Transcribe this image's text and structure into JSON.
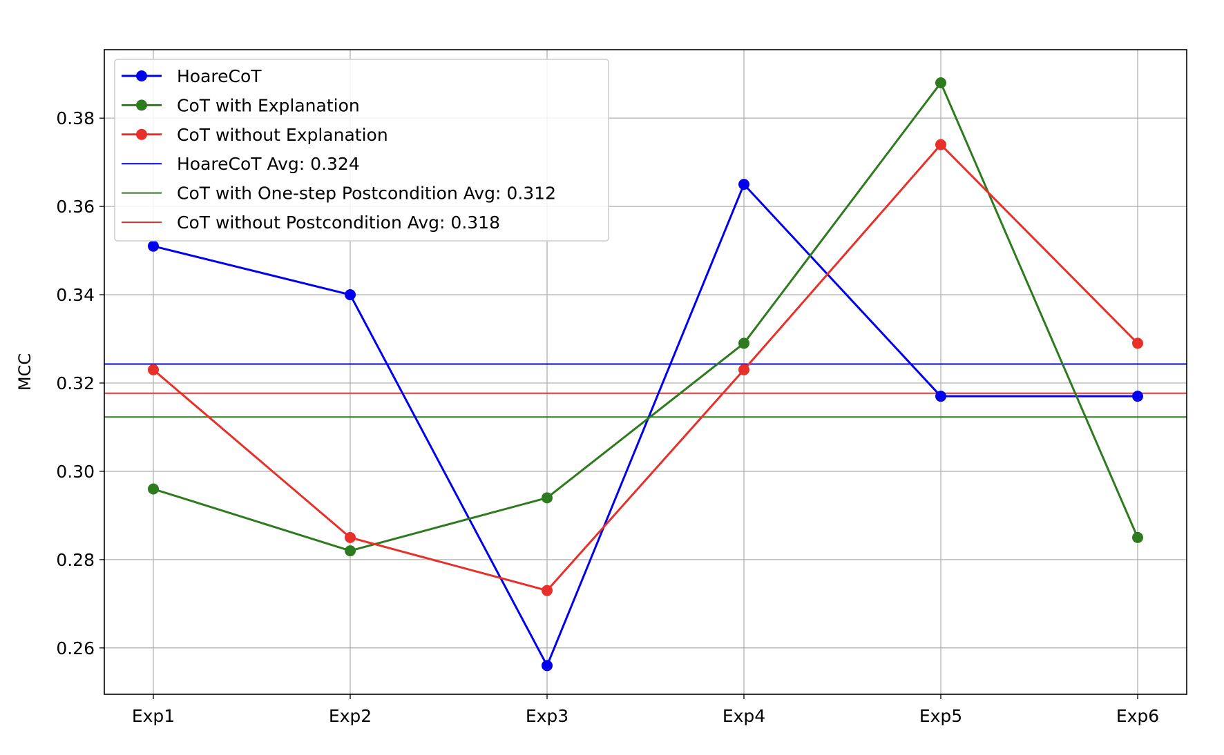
{
  "chart_data": {
    "type": "line",
    "title": "",
    "xlabel": "",
    "ylabel": "MCC",
    "categories": [
      "Exp1",
      "Exp2",
      "Exp3",
      "Exp4",
      "Exp5",
      "Exp6"
    ],
    "ylim": [
      0.2495,
      0.3955
    ],
    "yticks": [
      0.26,
      0.28,
      0.3,
      0.32,
      0.34,
      0.36,
      0.38
    ],
    "ytick_labels": [
      "0.26",
      "0.28",
      "0.30",
      "0.32",
      "0.34",
      "0.36",
      "0.38"
    ],
    "grid": true,
    "legend_position": "top-left",
    "series": [
      {
        "name": "HoareCoT",
        "color": "#0000ee",
        "values": [
          0.351,
          0.34,
          0.256,
          0.365,
          0.317,
          0.317
        ]
      },
      {
        "name": "CoT with Explanation",
        "color": "#2e7a1e",
        "values": [
          0.296,
          0.282,
          0.294,
          0.329,
          0.388,
          0.285
        ]
      },
      {
        "name": "CoT without Explanation",
        "color": "#e8302a",
        "values": [
          0.323,
          0.285,
          0.273,
          0.323,
          0.374,
          0.329
        ]
      }
    ],
    "hlines": [
      {
        "name": "HoareCoT Avg: 0.324",
        "color": "#0000ee",
        "value": 0.3243
      },
      {
        "name": "CoT with One-step Postcondition Avg: 0.312",
        "color": "#2e7a1e",
        "value": 0.3123
      },
      {
        "name": "CoT without Postcondition Avg: 0.318",
        "color": "#e8302a",
        "value": 0.3177
      }
    ]
  }
}
